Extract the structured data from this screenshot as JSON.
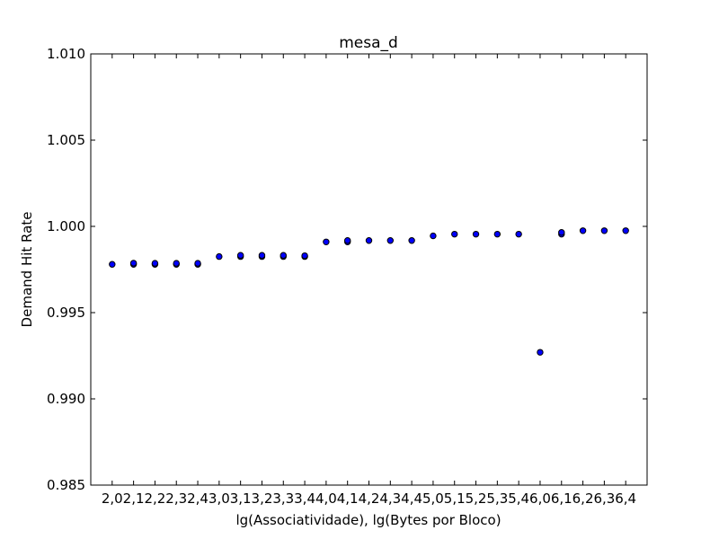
{
  "chart_data": {
    "type": "scatter",
    "title": "mesa_d",
    "xlabel": "lg(Associatividade), lg(Bytes por Bloco)",
    "ylabel": "Demand Hit Rate",
    "ylim": [
      0.985,
      1.01
    ],
    "yticks": [
      "0.985",
      "0.990",
      "0.995",
      "1.000",
      "1.005",
      "1.010"
    ],
    "ytick_values": [
      0.985,
      0.99,
      0.995,
      1.0,
      1.005,
      1.01
    ],
    "categories": [
      "2,0",
      "2,1",
      "2,2",
      "2,3",
      "2,4",
      "3,0",
      "3,1",
      "3,2",
      "3,3",
      "3,4",
      "4,0",
      "4,1",
      "4,2",
      "4,3",
      "4,4",
      "5,0",
      "5,1",
      "5,2",
      "5,3",
      "5,4",
      "6,0",
      "6,1",
      "6,2",
      "6,3",
      "6,4"
    ],
    "xlim": [
      -1,
      25
    ],
    "points": [
      {
        "x": 0,
        "y": 0.9978
      },
      {
        "x": 1,
        "y": 0.9978
      },
      {
        "x": 1,
        "y": 0.99787
      },
      {
        "x": 2,
        "y": 0.9978
      },
      {
        "x": 2,
        "y": 0.99786
      },
      {
        "x": 3,
        "y": 0.9978
      },
      {
        "x": 3,
        "y": 0.99786
      },
      {
        "x": 4,
        "y": 0.9978
      },
      {
        "x": 4,
        "y": 0.99786
      },
      {
        "x": 5,
        "y": 0.99825
      },
      {
        "x": 6,
        "y": 0.99825
      },
      {
        "x": 6,
        "y": 0.99832
      },
      {
        "x": 7,
        "y": 0.99825
      },
      {
        "x": 7,
        "y": 0.99832
      },
      {
        "x": 8,
        "y": 0.99825
      },
      {
        "x": 8,
        "y": 0.99832
      },
      {
        "x": 9,
        "y": 0.99825
      },
      {
        "x": 9,
        "y": 0.9983
      },
      {
        "x": 10,
        "y": 0.9991
      },
      {
        "x": 11,
        "y": 0.9991
      },
      {
        "x": 11,
        "y": 0.99918
      },
      {
        "x": 12,
        "y": 0.99918
      },
      {
        "x": 13,
        "y": 0.99918
      },
      {
        "x": 14,
        "y": 0.99918
      },
      {
        "x": 15,
        "y": 0.99945
      },
      {
        "x": 16,
        "y": 0.99955
      },
      {
        "x": 17,
        "y": 0.99955
      },
      {
        "x": 18,
        "y": 0.99955
      },
      {
        "x": 19,
        "y": 0.99955
      },
      {
        "x": 20,
        "y": 0.9927
      },
      {
        "x": 21,
        "y": 0.99955
      },
      {
        "x": 21,
        "y": 0.99965
      },
      {
        "x": 22,
        "y": 0.99975
      },
      {
        "x": 23,
        "y": 0.99975
      },
      {
        "x": 24,
        "y": 0.99975
      }
    ],
    "marker_color": "#0000ff",
    "marker_edge": "#000000",
    "grid": false,
    "legend": false
  }
}
